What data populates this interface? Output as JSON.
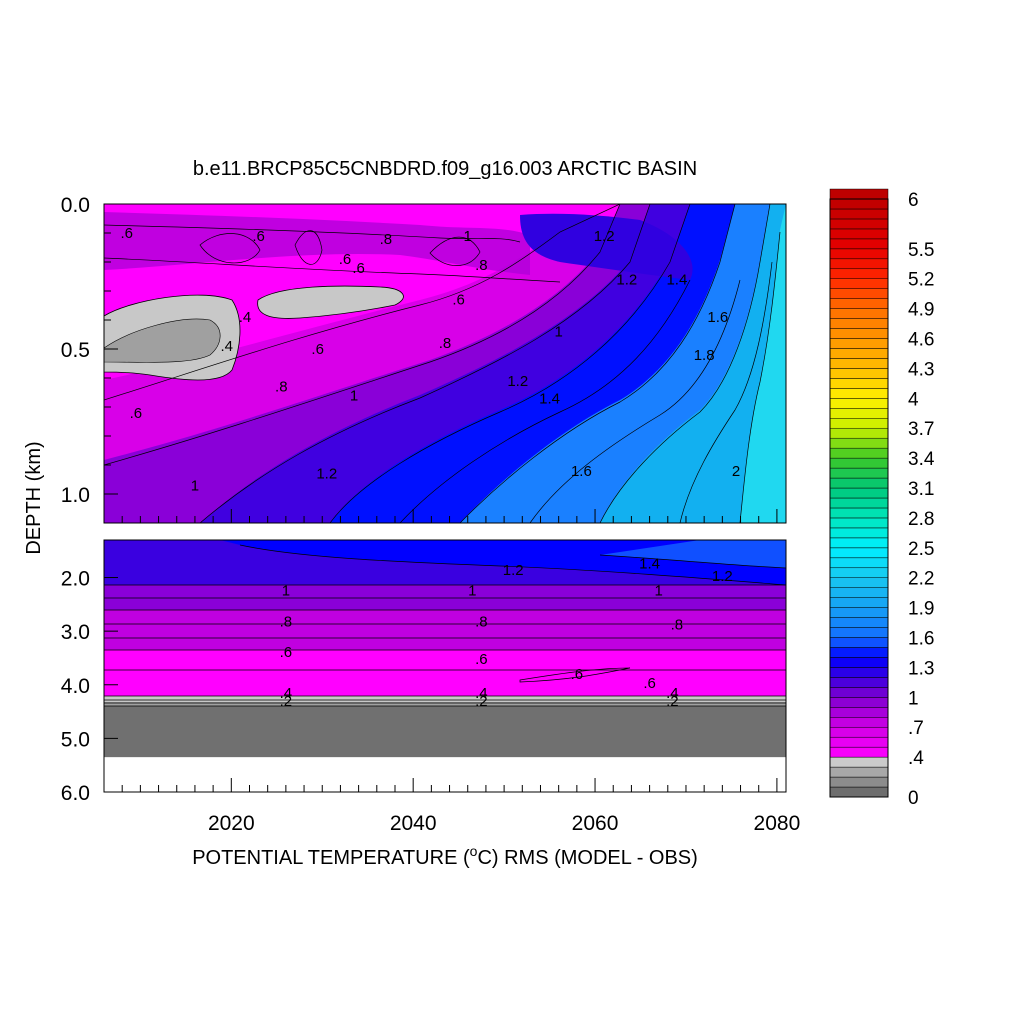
{
  "chart_data": {
    "type": "heatmap",
    "title": "b.e11.BRCP85C5CNBDRD.f09_g16.003 ARCTIC BASIN",
    "xlabel": "POTENTIAL TEMPERATURE (",
    "xlabel_sup": "o",
    "xlabel_rest": "C) RMS (MODEL - OBS)",
    "ylabel": "DEPTH (km)",
    "xlim": [
      2006,
      2081
    ],
    "x_ticks": [
      2020,
      2040,
      2060,
      2080
    ],
    "x_tick_labels": [
      "2020",
      "2040",
      "2060",
      "2080"
    ],
    "upper_panel": {
      "ylim": [
        0.0,
        1.1
      ],
      "y_ticks": [
        0.0,
        0.5,
        1.0
      ],
      "y_tick_labels": [
        "0.0",
        "0.5",
        "1.0"
      ]
    },
    "lower_panel": {
      "ylim": [
        1.3,
        6.0
      ],
      "y_ticks": [
        2.0,
        3.0,
        4.0,
        5.0,
        6.0
      ],
      "y_tick_labels": [
        "2.0",
        "3.0",
        "4.0",
        "5.0",
        "6.0"
      ],
      "bottom_fill_depth": 5.35
    },
    "colorbar": {
      "range": [
        0,
        6
      ],
      "tick_values": [
        6,
        5.5,
        5.2,
        4.9,
        4.6,
        4.3,
        4,
        3.7,
        3.4,
        3.1,
        2.8,
        2.5,
        2.2,
        1.9,
        1.6,
        1.3,
        1,
        0.7,
        0.4,
        0
      ],
      "tick_labels": [
        "6",
        "5.5",
        "5.2",
        "4.9",
        "4.6",
        "4.3",
        "4",
        "3.7",
        "3.4",
        "3.1",
        "2.8",
        "2.5",
        "2.2",
        "1.9",
        "1.6",
        "1.3",
        "1",
        ".7",
        ".4",
        "0"
      ]
    },
    "contour_labels": {
      "upper": [
        {
          "text": ".6",
          "x": 2008.5,
          "y": 0.1
        },
        {
          "text": ".6",
          "x": 2023.0,
          "y": 0.11
        },
        {
          "text": ".8",
          "x": 2037.0,
          "y": 0.12
        },
        {
          "text": "1",
          "x": 2046.0,
          "y": 0.11
        },
        {
          "text": "1.2",
          "x": 2061.0,
          "y": 0.11
        },
        {
          "text": ".6",
          "x": 2032.5,
          "y": 0.19
        },
        {
          "text": ".6",
          "x": 2034.0,
          "y": 0.22
        },
        {
          "text": ".8",
          "x": 2047.5,
          "y": 0.21
        },
        {
          "text": "1.2",
          "x": 2063.5,
          "y": 0.26
        },
        {
          "text": "1.4",
          "x": 2069.0,
          "y": 0.26
        },
        {
          "text": ".6",
          "x": 2045.0,
          "y": 0.33
        },
        {
          "text": ".4",
          "x": 2021.5,
          "y": 0.39
        },
        {
          "text": "1.6",
          "x": 2073.5,
          "y": 0.39
        },
        {
          "text": "1",
          "x": 2056.0,
          "y": 0.44
        },
        {
          "text": ".8",
          "x": 2043.5,
          "y": 0.48
        },
        {
          "text": ".4",
          "x": 2019.5,
          "y": 0.49
        },
        {
          "text": ".6",
          "x": 2029.5,
          "y": 0.5
        },
        {
          "text": "1.8",
          "x": 2072.0,
          "y": 0.52
        },
        {
          "text": "1.2",
          "x": 2051.5,
          "y": 0.61
        },
        {
          "text": ".8",
          "x": 2025.5,
          "y": 0.63
        },
        {
          "text": "1",
          "x": 2033.5,
          "y": 0.66
        },
        {
          "text": "1.4",
          "x": 2055.0,
          "y": 0.67
        },
        {
          "text": ".6",
          "x": 2009.5,
          "y": 0.72
        },
        {
          "text": "1.2",
          "x": 2030.5,
          "y": 0.93
        },
        {
          "text": "1.6",
          "x": 2058.5,
          "y": 0.92
        },
        {
          "text": "2",
          "x": 2075.5,
          "y": 0.92
        },
        {
          "text": "1",
          "x": 2016.0,
          "y": 0.97
        }
      ],
      "lower": [
        {
          "text": "1.4",
          "x": 2066.0,
          "y": 1.74
        },
        {
          "text": "1.2",
          "x": 2051.0,
          "y": 1.86
        },
        {
          "text": "1.2",
          "x": 2074.0,
          "y": 1.97
        },
        {
          "text": "1",
          "x": 2026.0,
          "y": 2.24
        },
        {
          "text": "1",
          "x": 2046.5,
          "y": 2.24
        },
        {
          "text": "1",
          "x": 2067.0,
          "y": 2.24
        },
        {
          "text": ".8",
          "x": 2026.0,
          "y": 2.82
        },
        {
          "text": ".8",
          "x": 2047.5,
          "y": 2.82
        },
        {
          "text": ".8",
          "x": 2069.0,
          "y": 2.88
        },
        {
          "text": ".6",
          "x": 2026.0,
          "y": 3.39
        },
        {
          "text": ".6",
          "x": 2047.5,
          "y": 3.52
        },
        {
          "text": ".6",
          "x": 2058.0,
          "y": 3.8
        },
        {
          "text": ".6",
          "x": 2066.0,
          "y": 3.97
        },
        {
          "text": ".4",
          "x": 2026.0,
          "y": 4.15
        },
        {
          "text": ".4",
          "x": 2047.5,
          "y": 4.15
        },
        {
          "text": ".4",
          "x": 2068.5,
          "y": 4.15
        },
        {
          "text": ".2",
          "x": 2026.0,
          "y": 4.3
        },
        {
          "text": ".2",
          "x": 2047.5,
          "y": 4.3
        },
        {
          "text": ".2",
          "x": 2068.5,
          "y": 4.3
        }
      ]
    },
    "colors": {
      "below_04": "#c8c8c8",
      "level_04": "#ff00ff",
      "level_07": "#cc00dd",
      "level_10": "#8000d0",
      "level_12": "#3a00e0",
      "level_13": "#0000ff",
      "level_16": "#1a88ff",
      "level_19": "#12b8f0",
      "level_22": "#20d8f0",
      "land_gray": "#707070",
      "no_data": "#ffffff"
    }
  }
}
